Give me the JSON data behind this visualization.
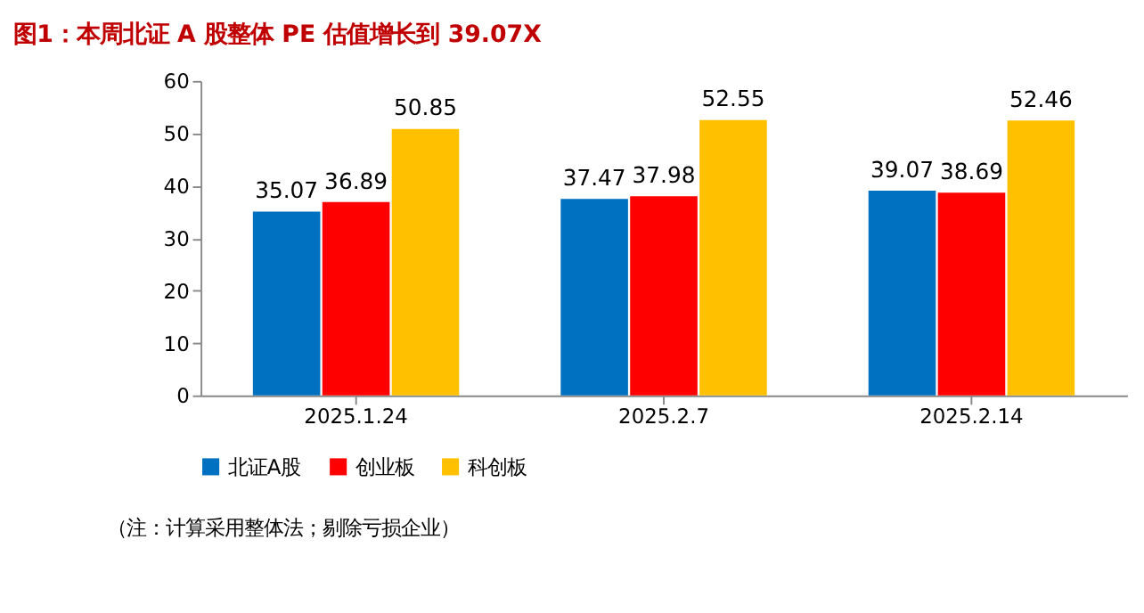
{
  "chart_data": {
    "type": "bar",
    "title": "图1：本周北证 A 股整体 PE 估值增长到 39.07X",
    "categories": [
      "2025.1.24",
      "2025.2.7",
      "2025.2.14"
    ],
    "series": [
      {
        "name": "北证A股",
        "color": "#0070c0",
        "values": [
          35.07,
          37.47,
          39.07
        ]
      },
      {
        "name": "创业板",
        "color": "#ff0000",
        "values": [
          36.89,
          37.98,
          38.69
        ]
      },
      {
        "name": "科创板",
        "color": "#ffc000",
        "values": [
          50.85,
          52.55,
          52.46
        ]
      }
    ],
    "ylim": [
      0,
      60
    ],
    "yticks": [
      0,
      10,
      20,
      30,
      40,
      50,
      60
    ],
    "grid": false,
    "legend": "bottom",
    "data_labels": true,
    "annotations": [
      "（注：计算采用整体法；剔除亏损企业）"
    ]
  }
}
